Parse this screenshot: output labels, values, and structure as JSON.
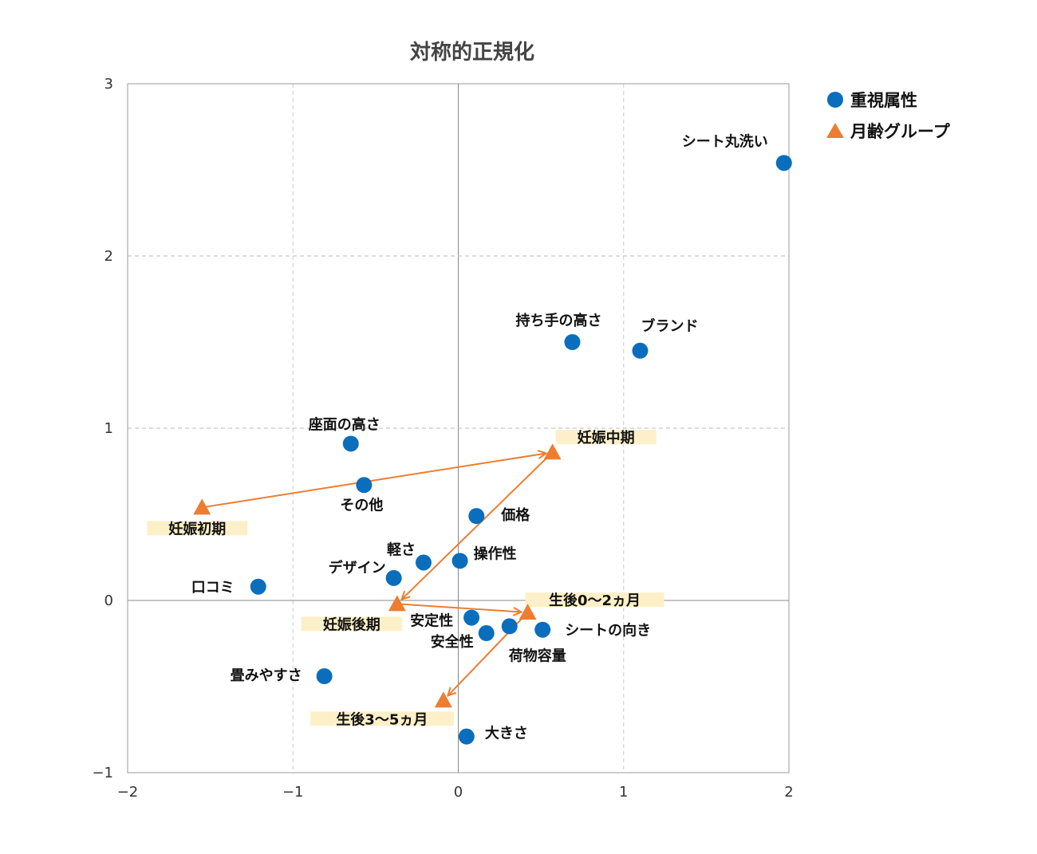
{
  "chart_data": {
    "type": "scatter",
    "title": "対称的正規化",
    "xlabel": "",
    "ylabel": "",
    "xlim": [
      -2,
      2
    ],
    "ylim": [
      -1,
      3
    ],
    "xticks": [
      "−2",
      "−1",
      "0",
      "1",
      "2"
    ],
    "yticks": [
      "−1",
      "0",
      "1",
      "2",
      "3"
    ],
    "grid": true,
    "legend_position": "top-right",
    "colors": {
      "attribute": "#0a6ebd",
      "group": "#ed7d31",
      "label_bg": "#fdf0c8"
    },
    "series": [
      {
        "name": "重視属性",
        "marker": "circle",
        "points": [
          {
            "label": "シート丸洗い",
            "x": 1.97,
            "y": 2.54
          },
          {
            "label": "持ち手の高さ",
            "x": 0.69,
            "y": 1.5
          },
          {
            "label": "ブランド",
            "x": 1.1,
            "y": 1.45
          },
          {
            "label": "座面の高さ",
            "x": -0.65,
            "y": 0.91
          },
          {
            "label": "その他",
            "x": -0.57,
            "y": 0.67
          },
          {
            "label": "価格",
            "x": 0.11,
            "y": 0.49
          },
          {
            "label": "操作性",
            "x": 0.01,
            "y": 0.23
          },
          {
            "label": "軽さ",
            "x": -0.21,
            "y": 0.22
          },
          {
            "label": "デザイン",
            "x": -0.39,
            "y": 0.13
          },
          {
            "label": "口コミ",
            "x": -1.21,
            "y": 0.08
          },
          {
            "label": "安定性",
            "x": 0.08,
            "y": -0.1
          },
          {
            "label": "安全性",
            "x": 0.17,
            "y": -0.19
          },
          {
            "label": "荷物容量",
            "x": 0.31,
            "y": -0.15
          },
          {
            "label": "シートの向き",
            "x": 0.51,
            "y": -0.17
          },
          {
            "label": "畳みやすさ",
            "x": -0.81,
            "y": -0.44
          },
          {
            "label": "大きさ",
            "x": 0.05,
            "y": -0.79
          }
        ]
      },
      {
        "name": "月齢グループ",
        "marker": "triangle",
        "connected_with_arrows": true,
        "points": [
          {
            "label": "妊娠初期",
            "x": -1.55,
            "y": 0.54
          },
          {
            "label": "妊娠中期",
            "x": 0.57,
            "y": 0.86
          },
          {
            "label": "妊娠後期",
            "x": -0.37,
            "y": -0.02
          },
          {
            "label": "生後0〜2ヵ月",
            "x": 0.42,
            "y": -0.07
          },
          {
            "label": "生後3〜5ヵ月",
            "x": -0.09,
            "y": -0.58
          }
        ]
      }
    ]
  }
}
